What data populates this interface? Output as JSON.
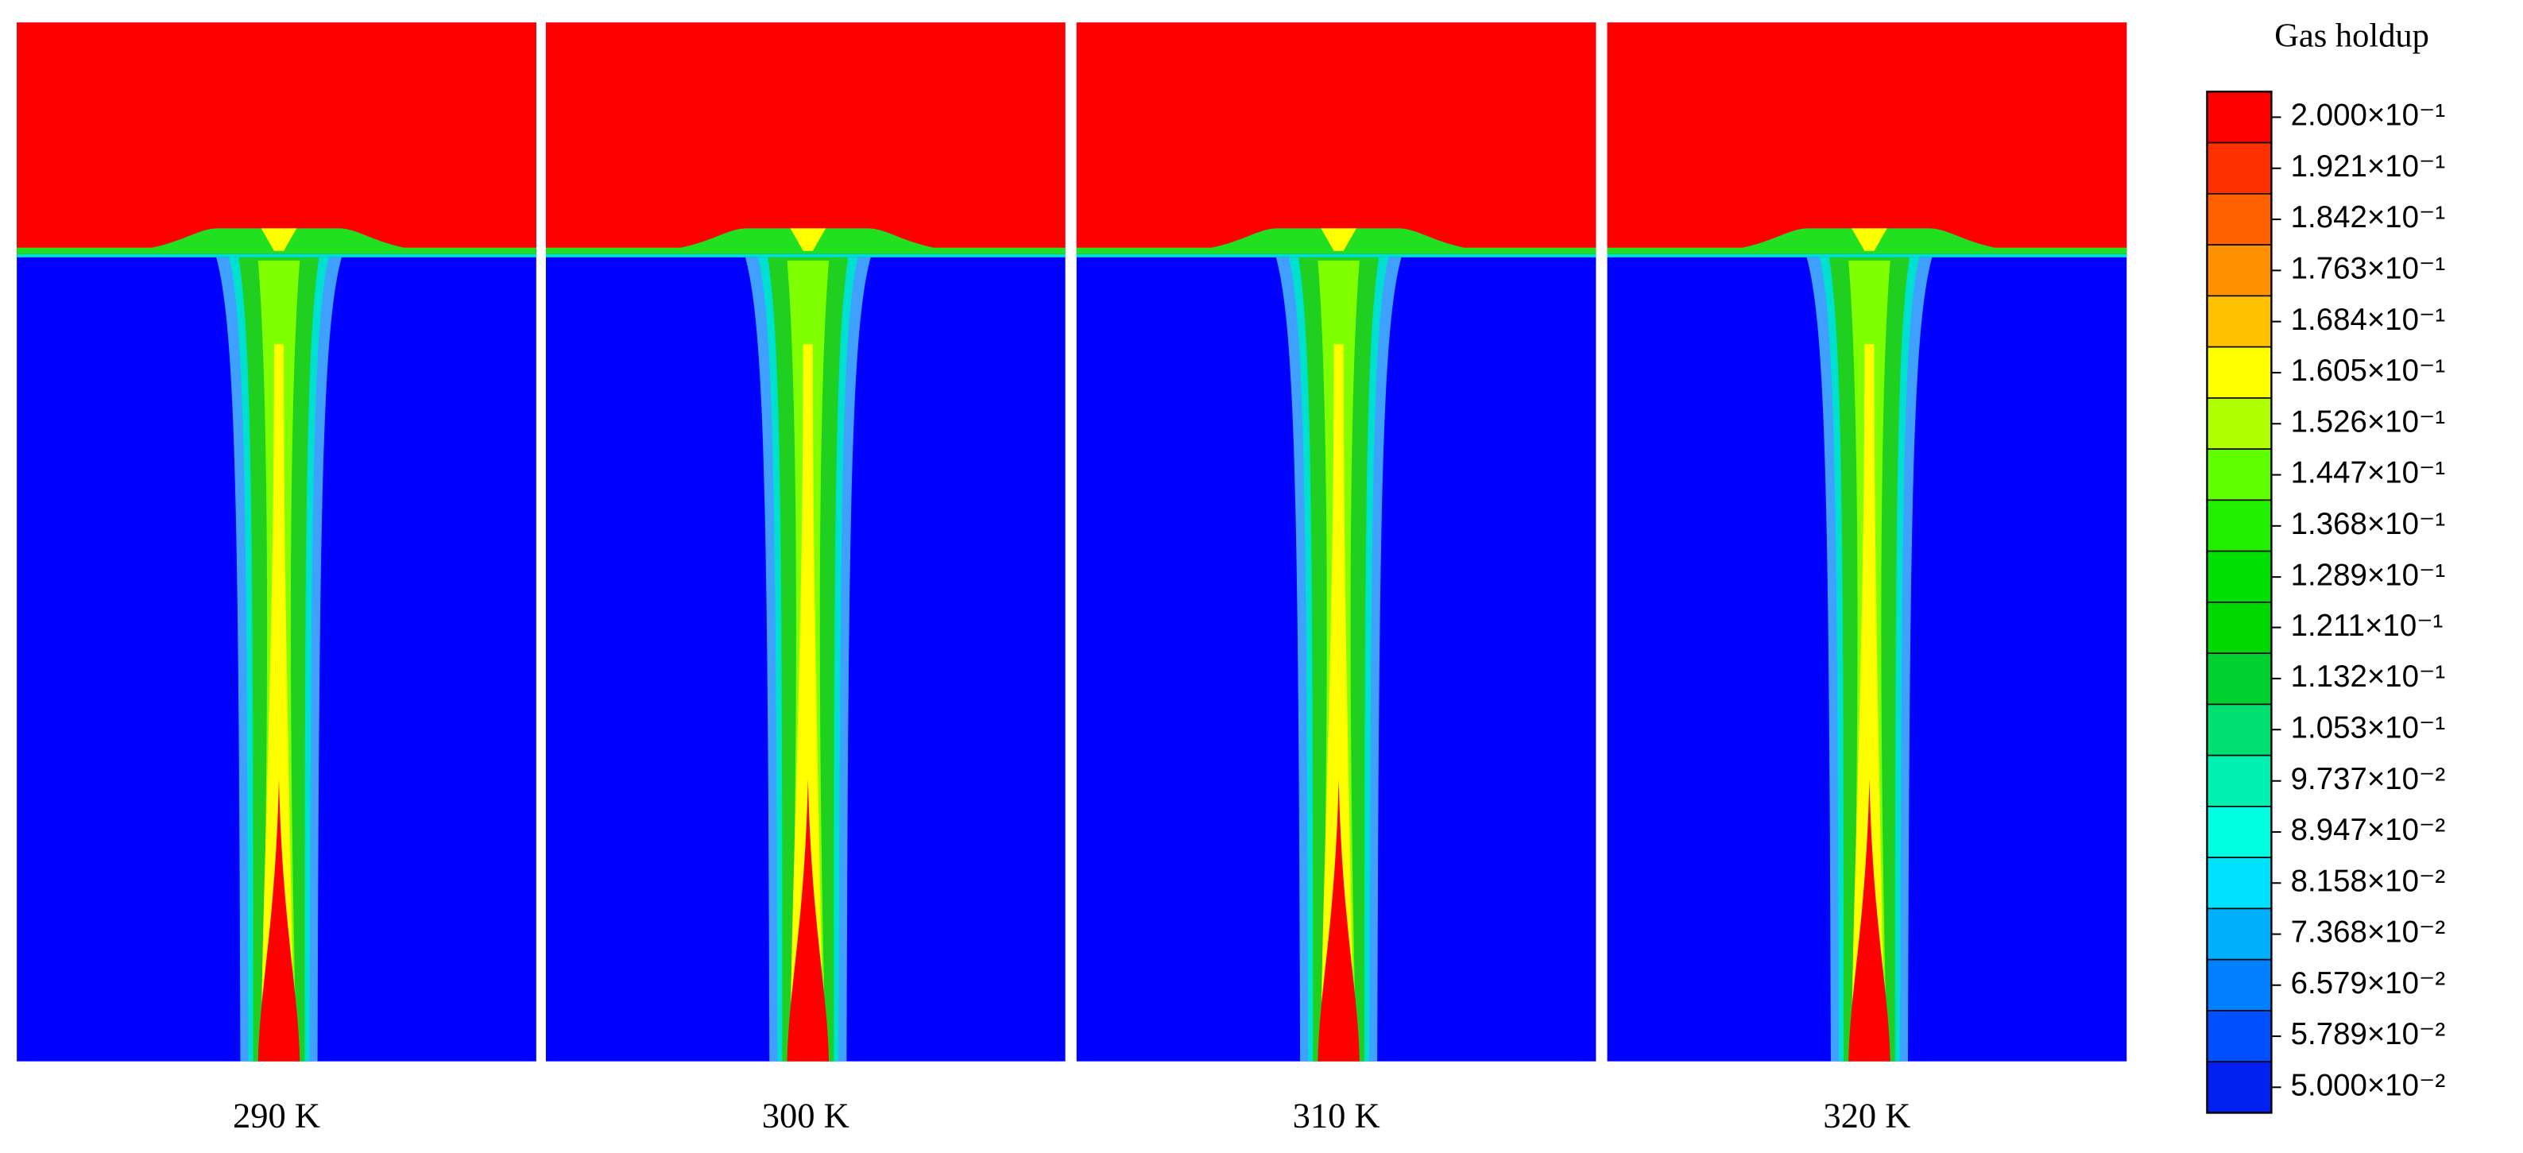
{
  "panels": [
    {
      "label": "290 K"
    },
    {
      "label": "300 K"
    },
    {
      "label": "310 K"
    },
    {
      "label": "320 K"
    }
  ],
  "colorbar": {
    "title": "Gas holdup",
    "levels": [
      {
        "value": 0.2,
        "label": "2.000×10⁻¹"
      },
      {
        "value": 0.1921,
        "label": "1.921×10⁻¹"
      },
      {
        "value": 0.1842,
        "label": "1.842×10⁻¹"
      },
      {
        "value": 0.1763,
        "label": "1.763×10⁻¹"
      },
      {
        "value": 0.1684,
        "label": "1.684×10⁻¹"
      },
      {
        "value": 0.1605,
        "label": "1.605×10⁻¹"
      },
      {
        "value": 0.1526,
        "label": "1.526×10⁻¹"
      },
      {
        "value": 0.1447,
        "label": "1.447×10⁻¹"
      },
      {
        "value": 0.1368,
        "label": "1.368×10⁻¹"
      },
      {
        "value": 0.1289,
        "label": "1.289×10⁻¹"
      },
      {
        "value": 0.1211,
        "label": "1.211×10⁻¹"
      },
      {
        "value": 0.1132,
        "label": "1.132×10⁻¹"
      },
      {
        "value": 0.1053,
        "label": "1.053×10⁻¹"
      },
      {
        "value": 0.09737,
        "label": "9.737×10⁻²"
      },
      {
        "value": 0.08947,
        "label": "8.947×10⁻²"
      },
      {
        "value": 0.08158,
        "label": "8.158×10⁻²"
      },
      {
        "value": 0.07368,
        "label": "7.368×10⁻²"
      },
      {
        "value": 0.06579,
        "label": "6.579×10⁻²"
      },
      {
        "value": 0.05789,
        "label": "5.789×10⁻²"
      },
      {
        "value": 0.05,
        "label": "5.000×10⁻²"
      }
    ],
    "colors": [
      "#ff0000",
      "#ff3000",
      "#ff6000",
      "#ff9000",
      "#ffc000",
      "#ffff00",
      "#b0ff00",
      "#60ff00",
      "#20f000",
      "#00e000",
      "#00d800",
      "#00d030",
      "#00e070",
      "#00f0b0",
      "#00ffe0",
      "#00e0ff",
      "#00b0ff",
      "#0080ff",
      "#0050ff",
      "#0020f0"
    ]
  }
}
